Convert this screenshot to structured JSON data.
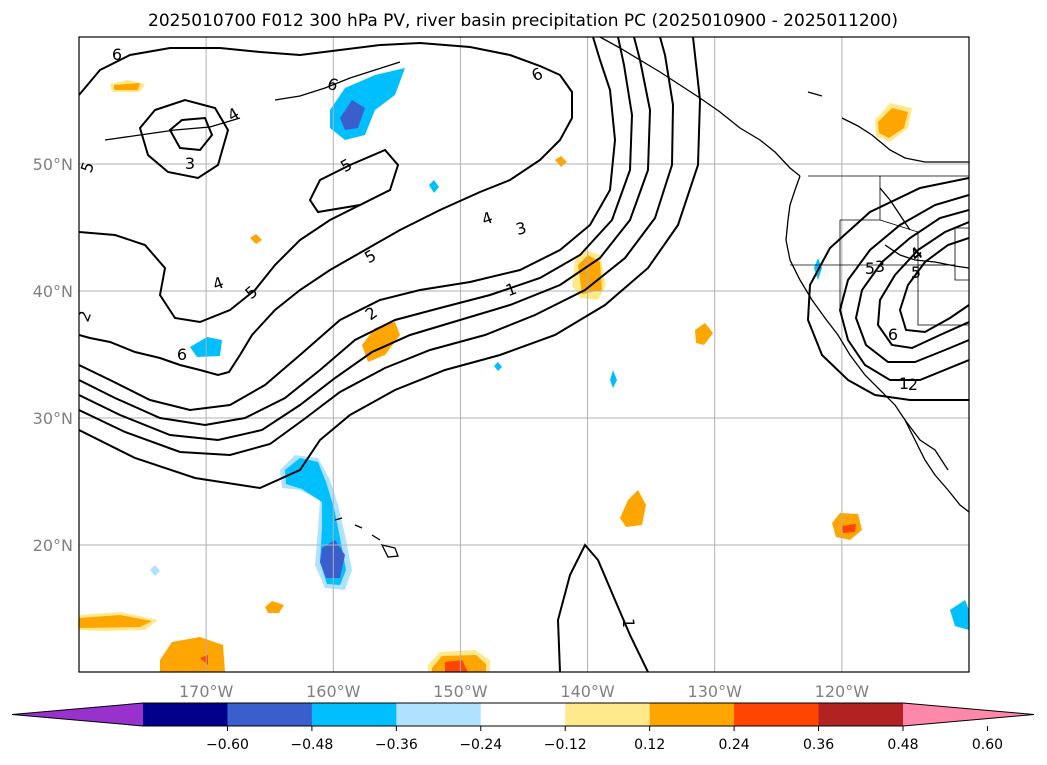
{
  "title": "2025010700 F012 300 hPa PV, river basin precipitation PC (2025010900 - 2025011200)",
  "chart_data": {
    "type": "contour map",
    "title": "2025010700 F012 300 hPa PV, river basin precipitation PC (2025010900 - 2025011200)",
    "lon_range": [
      -180,
      -110
    ],
    "lat_range": [
      10,
      60
    ],
    "lat_ticks": [
      "50°N",
      "40°N",
      "30°N",
      "20°N"
    ],
    "lon_ticks": [
      "170°W",
      "160°W",
      "150°W",
      "140°W",
      "130°W",
      "120°W"
    ],
    "grid": true,
    "pv_contour_labels": [
      "6",
      "4",
      "3",
      "5",
      "6",
      "5",
      "6",
      "4",
      "3",
      "5",
      "4",
      "5",
      "2",
      "1",
      "6",
      "4",
      "1",
      "3",
      "4",
      "5",
      "2",
      "6",
      "2",
      "1",
      "5"
    ],
    "colorbar": {
      "ticks": [
        "−0.60",
        "−0.48",
        "−0.36",
        "−0.24",
        "−0.12",
        "0.12",
        "0.24",
        "0.36",
        "0.48",
        "0.60"
      ],
      "colors": [
        "#9932cc",
        "#00008b",
        "#3a5fcd",
        "#00bfff",
        "#b0e2ff",
        "#ffffff",
        "#ffe98a",
        "#ffa500",
        "#ff4500",
        "#b22222",
        "#ff88aa"
      ]
    },
    "colors": {
      "neg_light": "#b0e2ff",
      "neg": "#00bfff",
      "neg_mid": "#3a5fcd",
      "pos_light": "#ffe98a",
      "pos": "#ffa500",
      "pos_mid": "#ff4500"
    }
  }
}
